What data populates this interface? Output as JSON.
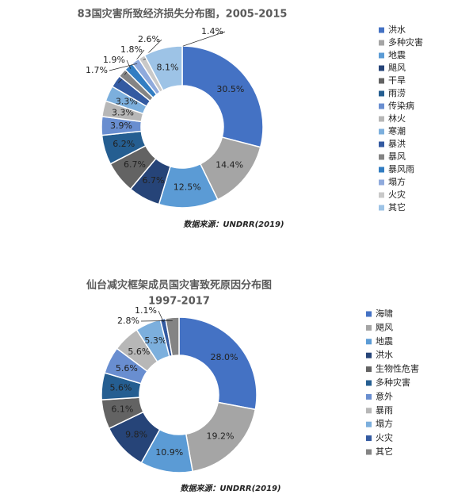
{
  "chart_data": [
    {
      "type": "donut",
      "title": "83国灾害所致经济损失分布图，2005-2015",
      "categories": [
        "洪水",
        "多种灾害",
        "地震",
        "飓风",
        "干旱",
        "雨涝",
        "传染病",
        "林火",
        "寒潮",
        "暴洪",
        "暴风",
        "暴风雨",
        "塌方",
        "火灾",
        "其它"
      ],
      "values": [
        30.5,
        14.4,
        12.5,
        6.7,
        6.7,
        6.2,
        3.9,
        3.3,
        3.3,
        2.6,
        1.8,
        1.9,
        1.7,
        1.4,
        8.1
      ],
      "value_labels": [
        "30.5%",
        "14.4%",
        "12.5%",
        "6.7%",
        "6.7%",
        "6.2%",
        "3.9%",
        "3.3%",
        "3.3%",
        "2.6%",
        "1.8%",
        "1.9%",
        "1.7%",
        "1.4%",
        "8.1%"
      ],
      "colors": [
        "#4472c4",
        "#a5a5a5",
        "#5b9bd5",
        "#264478",
        "#636363",
        "#255e91",
        "#698ed0",
        "#b7b7b7",
        "#7cafdd",
        "#335aa1",
        "#848484",
        "#327dc2",
        "#8faadc",
        "#c9c9c9",
        "#9dc3e6"
      ],
      "source": "数据来源：UNDRR(2019)"
    },
    {
      "type": "donut",
      "title": "仙台减灾框架成员国灾害致死原因分布图",
      "subtitle": "1997-2017",
      "categories": [
        "海啸",
        "飓风",
        "地震",
        "洪水",
        "生物性危害",
        "多种灾害",
        "意外",
        "暴雨",
        "塌方",
        "火灾",
        "其它"
      ],
      "values": [
        28.0,
        19.2,
        10.9,
        9.8,
        6.1,
        5.6,
        5.6,
        5.6,
        5.3,
        1.1,
        2.8
      ],
      "value_labels": [
        "28.0%",
        "19.2%",
        "10.9%",
        "9.8%",
        "6.1%",
        "5.6%",
        "5.6%",
        "5.6%",
        "5.3%",
        "1.1%",
        "2.8%"
      ],
      "colors": [
        "#4472c4",
        "#a5a5a5",
        "#5b9bd5",
        "#264478",
        "#636363",
        "#255e91",
        "#698ed0",
        "#b7b7b7",
        "#7cafdd",
        "#335aa1",
        "#848484"
      ],
      "source": "数据来源：UNDRR(2019)"
    }
  ]
}
